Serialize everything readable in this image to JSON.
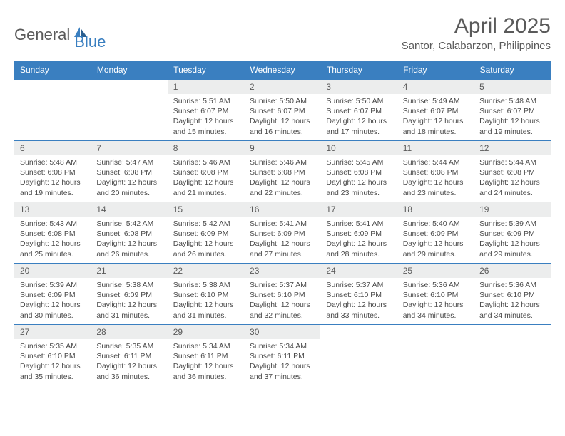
{
  "brand": {
    "general": "General",
    "blue": "Blue"
  },
  "colors": {
    "header_bg": "#3a7fc0",
    "header_text": "#ffffff",
    "daynum_bg": "#eceded",
    "text_muted": "#5a5a5a",
    "body_text": "#4a4a4a",
    "border": "#3a7fc0"
  },
  "typography": {
    "title_fontsize": 30,
    "location_fontsize": 15,
    "dayheader_fontsize": 12,
    "daynum_fontsize": 12,
    "body_fontsize": 10.5
  },
  "title": {
    "month": "April 2025",
    "location": "Santor, Calabarzon, Philippines"
  },
  "day_headers": [
    "Sunday",
    "Monday",
    "Tuesday",
    "Wednesday",
    "Thursday",
    "Friday",
    "Saturday"
  ],
  "weeks": [
    [
      {
        "n": "",
        "lines": []
      },
      {
        "n": "",
        "lines": []
      },
      {
        "n": "1",
        "lines": [
          "Sunrise: 5:51 AM",
          "Sunset: 6:07 PM",
          "Daylight: 12 hours and 15 minutes."
        ]
      },
      {
        "n": "2",
        "lines": [
          "Sunrise: 5:50 AM",
          "Sunset: 6:07 PM",
          "Daylight: 12 hours and 16 minutes."
        ]
      },
      {
        "n": "3",
        "lines": [
          "Sunrise: 5:50 AM",
          "Sunset: 6:07 PM",
          "Daylight: 12 hours and 17 minutes."
        ]
      },
      {
        "n": "4",
        "lines": [
          "Sunrise: 5:49 AM",
          "Sunset: 6:07 PM",
          "Daylight: 12 hours and 18 minutes."
        ]
      },
      {
        "n": "5",
        "lines": [
          "Sunrise: 5:48 AM",
          "Sunset: 6:07 PM",
          "Daylight: 12 hours and 19 minutes."
        ]
      }
    ],
    [
      {
        "n": "6",
        "lines": [
          "Sunrise: 5:48 AM",
          "Sunset: 6:08 PM",
          "Daylight: 12 hours and 19 minutes."
        ]
      },
      {
        "n": "7",
        "lines": [
          "Sunrise: 5:47 AM",
          "Sunset: 6:08 PM",
          "Daylight: 12 hours and 20 minutes."
        ]
      },
      {
        "n": "8",
        "lines": [
          "Sunrise: 5:46 AM",
          "Sunset: 6:08 PM",
          "Daylight: 12 hours and 21 minutes."
        ]
      },
      {
        "n": "9",
        "lines": [
          "Sunrise: 5:46 AM",
          "Sunset: 6:08 PM",
          "Daylight: 12 hours and 22 minutes."
        ]
      },
      {
        "n": "10",
        "lines": [
          "Sunrise: 5:45 AM",
          "Sunset: 6:08 PM",
          "Daylight: 12 hours and 23 minutes."
        ]
      },
      {
        "n": "11",
        "lines": [
          "Sunrise: 5:44 AM",
          "Sunset: 6:08 PM",
          "Daylight: 12 hours and 23 minutes."
        ]
      },
      {
        "n": "12",
        "lines": [
          "Sunrise: 5:44 AM",
          "Sunset: 6:08 PM",
          "Daylight: 12 hours and 24 minutes."
        ]
      }
    ],
    [
      {
        "n": "13",
        "lines": [
          "Sunrise: 5:43 AM",
          "Sunset: 6:08 PM",
          "Daylight: 12 hours and 25 minutes."
        ]
      },
      {
        "n": "14",
        "lines": [
          "Sunrise: 5:42 AM",
          "Sunset: 6:08 PM",
          "Daylight: 12 hours and 26 minutes."
        ]
      },
      {
        "n": "15",
        "lines": [
          "Sunrise: 5:42 AM",
          "Sunset: 6:09 PM",
          "Daylight: 12 hours and 26 minutes."
        ]
      },
      {
        "n": "16",
        "lines": [
          "Sunrise: 5:41 AM",
          "Sunset: 6:09 PM",
          "Daylight: 12 hours and 27 minutes."
        ]
      },
      {
        "n": "17",
        "lines": [
          "Sunrise: 5:41 AM",
          "Sunset: 6:09 PM",
          "Daylight: 12 hours and 28 minutes."
        ]
      },
      {
        "n": "18",
        "lines": [
          "Sunrise: 5:40 AM",
          "Sunset: 6:09 PM",
          "Daylight: 12 hours and 29 minutes."
        ]
      },
      {
        "n": "19",
        "lines": [
          "Sunrise: 5:39 AM",
          "Sunset: 6:09 PM",
          "Daylight: 12 hours and 29 minutes."
        ]
      }
    ],
    [
      {
        "n": "20",
        "lines": [
          "Sunrise: 5:39 AM",
          "Sunset: 6:09 PM",
          "Daylight: 12 hours and 30 minutes."
        ]
      },
      {
        "n": "21",
        "lines": [
          "Sunrise: 5:38 AM",
          "Sunset: 6:09 PM",
          "Daylight: 12 hours and 31 minutes."
        ]
      },
      {
        "n": "22",
        "lines": [
          "Sunrise: 5:38 AM",
          "Sunset: 6:10 PM",
          "Daylight: 12 hours and 31 minutes."
        ]
      },
      {
        "n": "23",
        "lines": [
          "Sunrise: 5:37 AM",
          "Sunset: 6:10 PM",
          "Daylight: 12 hours and 32 minutes."
        ]
      },
      {
        "n": "24",
        "lines": [
          "Sunrise: 5:37 AM",
          "Sunset: 6:10 PM",
          "Daylight: 12 hours and 33 minutes."
        ]
      },
      {
        "n": "25",
        "lines": [
          "Sunrise: 5:36 AM",
          "Sunset: 6:10 PM",
          "Daylight: 12 hours and 34 minutes."
        ]
      },
      {
        "n": "26",
        "lines": [
          "Sunrise: 5:36 AM",
          "Sunset: 6:10 PM",
          "Daylight: 12 hours and 34 minutes."
        ]
      }
    ],
    [
      {
        "n": "27",
        "lines": [
          "Sunrise: 5:35 AM",
          "Sunset: 6:10 PM",
          "Daylight: 12 hours and 35 minutes."
        ]
      },
      {
        "n": "28",
        "lines": [
          "Sunrise: 5:35 AM",
          "Sunset: 6:11 PM",
          "Daylight: 12 hours and 36 minutes."
        ]
      },
      {
        "n": "29",
        "lines": [
          "Sunrise: 5:34 AM",
          "Sunset: 6:11 PM",
          "Daylight: 12 hours and 36 minutes."
        ]
      },
      {
        "n": "30",
        "lines": [
          "Sunrise: 5:34 AM",
          "Sunset: 6:11 PM",
          "Daylight: 12 hours and 37 minutes."
        ]
      },
      {
        "n": "",
        "lines": []
      },
      {
        "n": "",
        "lines": []
      },
      {
        "n": "",
        "lines": []
      }
    ]
  ]
}
